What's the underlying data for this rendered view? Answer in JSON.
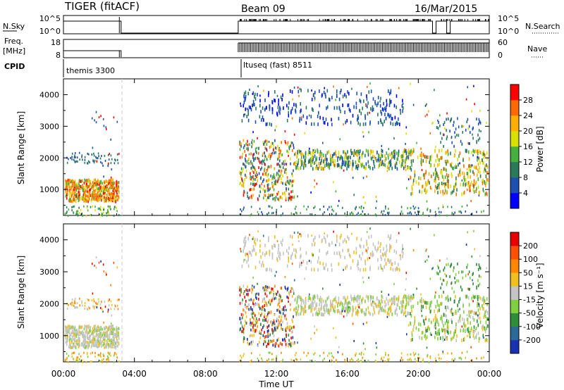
{
  "header": {
    "station": "TIGER (fitACF)",
    "beam": "Beam 09",
    "date": "16/Mar/2015"
  },
  "status_panels": {
    "nsky_label": "N.Sky",
    "nsky_ticks": [
      "10^5",
      "10^0"
    ],
    "nsearch_label": "N.Search",
    "freq_label": "Freq.",
    "freq_unit": "[MHz]",
    "freq_ticks": [
      "18",
      "8"
    ],
    "nave_label": "Nave",
    "nave_ticks": [
      "60",
      "0"
    ],
    "cpid_label": "CPID",
    "cpid_segments": [
      {
        "label": "themis 3300",
        "start_hr": 0.0,
        "end_hr": 3.25
      },
      {
        "label": "ltuseq (fast) 8511",
        "start_hr": 9.85,
        "end_hr": 24.0
      }
    ]
  },
  "chart_data": [
    {
      "type": "heatmap",
      "name": "power",
      "ylabel": "Slant Range [km]",
      "xlim": [
        0,
        24
      ],
      "ylim": [
        180,
        4500
      ],
      "yticks": [
        1000,
        2000,
        3000,
        4000
      ],
      "colorbar": {
        "label": "Power [dB]",
        "ticks": [
          "4",
          "8",
          "12",
          "16",
          "20",
          "24",
          "28"
        ],
        "colors": [
          "#0000ff",
          "#1e50b4",
          "#2a7a5a",
          "#45b040",
          "#d8e000",
          "#ffb000",
          "#ff6a00",
          "#ff0000"
        ]
      },
      "data_gap_hr": [
        3.25,
        9.85
      ]
    },
    {
      "type": "heatmap",
      "name": "velocity",
      "ylabel": "Slant Range [km]",
      "xlabel": "Time UT",
      "xlim": [
        0,
        24
      ],
      "ylim": [
        180,
        4500
      ],
      "yticks": [
        1000,
        2000,
        3000,
        4000
      ],
      "xticks": [
        "00:00",
        "04:00",
        "08:00",
        "12:00",
        "16:00",
        "20:00",
        "00:00"
      ],
      "colorbar": {
        "label": "Velocity [m s⁻¹]",
        "ticks": [
          "200",
          "100",
          "50",
          "15",
          "-15",
          "-50",
          "-100",
          "-200"
        ],
        "colors": [
          "#1a32b0",
          "#2d6a9a",
          "#2f8c3a",
          "#7fd040",
          "#c4c4c4",
          "#f0c020",
          "#ff8800",
          "#ff5000",
          "#e80000"
        ]
      },
      "data_gap_hr": [
        3.25,
        9.85
      ]
    }
  ]
}
